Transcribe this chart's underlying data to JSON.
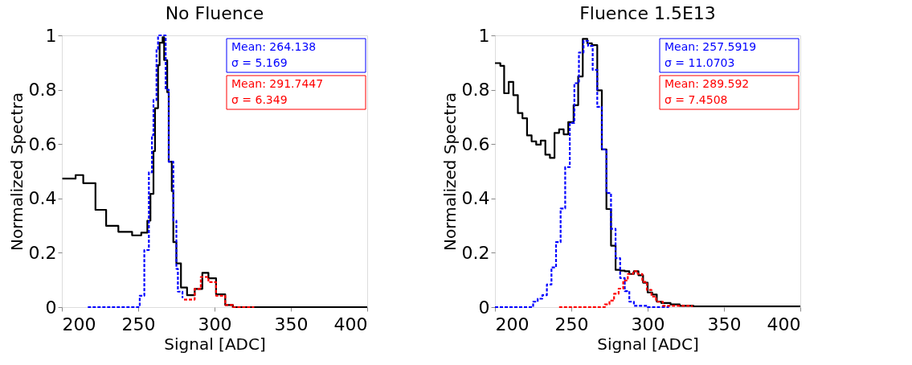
{
  "chart_data": [
    {
      "type": "step",
      "title": "No Fluence",
      "xlabel": "Signal [ADC]",
      "ylabel": "Normalized Spectra",
      "xlim": [
        200,
        400
      ],
      "xticks": [
        200,
        250,
        300,
        350,
        400
      ],
      "ylim": [
        0,
        1
      ],
      "yticks": [
        0,
        0.2,
        0.4,
        0.6,
        0.8,
        1
      ],
      "grid": false,
      "series": [
        {
          "color": "#000000",
          "line_style": "solid",
          "x": [
            200.3,
            209,
            214,
            222,
            229,
            237,
            246,
            252,
            256,
            258,
            260,
            261,
            263,
            264,
            266,
            267,
            269,
            270,
            272,
            273,
            275,
            278,
            282,
            287,
            292,
            296,
            301,
            307,
            312,
            350,
            400
          ],
          "values": [
            0.473,
            0.486,
            0.456,
            0.358,
            0.299,
            0.277,
            0.264,
            0.274,
            0.318,
            0.417,
            0.574,
            0.732,
            0.89,
            0.973,
            0.993,
            0.909,
            0.791,
            0.535,
            0.427,
            0.239,
            0.161,
            0.072,
            0.044,
            0.067,
            0.126,
            0.106,
            0.047,
            0.008,
            0,
            0,
            0
          ]
        },
        {
          "color": "#0000ff",
          "line_style": "dashed",
          "x": [
            217,
            246,
            251,
            254,
            257,
            259,
            260,
            262,
            263,
            266,
            268,
            270,
            273,
            275,
            276,
            279
          ],
          "values": [
            0,
            0,
            0.042,
            0.21,
            0.496,
            0.633,
            0.762,
            0.949,
            1,
            1,
            0.8,
            0.535,
            0.318,
            0.141,
            0.057,
            0.033
          ]
        },
        {
          "color": "#ff0000",
          "line_style": "dashed",
          "x": [
            280,
            287,
            291,
            296,
            301,
            307,
            312,
            326
          ],
          "values": [
            0.028,
            0.067,
            0.111,
            0.092,
            0.042,
            0.008,
            0,
            0
          ]
        }
      ],
      "annotations": [
        "Mean: 264.138",
        "σ = 5.169",
        "Mean: 291.7447",
        "σ = 6.349"
      ]
    },
    {
      "type": "step",
      "title": "Fluence 1.5E13",
      "xlabel": "Signal [ADC]",
      "ylabel": "Normalized Spectra",
      "xlim": [
        200,
        400
      ],
      "xticks": [
        200,
        250,
        300,
        350,
        400
      ],
      "ylim": [
        0,
        1
      ],
      "yticks": [
        0,
        0.2,
        0.4,
        0.6,
        0.8,
        1
      ],
      "grid": false,
      "series": [
        {
          "color": "#000000",
          "line_style": "solid",
          "x": [
            200,
            203.5,
            206,
            209,
            212,
            215,
            218,
            221,
            224,
            227,
            230,
            233,
            236,
            239,
            242,
            245,
            248,
            251.5,
            254.5,
            257.5,
            260.5,
            263.5,
            267,
            270,
            273,
            276,
            279,
            282,
            285,
            288,
            291,
            294,
            297,
            300,
            303,
            306,
            309,
            315,
            321,
            330,
            350,
            375,
            400
          ],
          "values": [
            0.898,
            0.888,
            0.787,
            0.829,
            0.78,
            0.714,
            0.695,
            0.632,
            0.61,
            0.598,
            0.613,
            0.561,
            0.549,
            0.641,
            0.654,
            0.636,
            0.681,
            0.743,
            0.849,
            0.987,
            0.971,
            0.964,
            0.798,
            0.58,
            0.361,
            0.226,
            0.137,
            0.134,
            0.132,
            0.122,
            0.132,
            0.117,
            0.09,
            0.054,
            0.046,
            0.02,
            0.015,
            0.01,
            0.005,
            0.003,
            0.003,
            0.003,
            0.003
          ]
        },
        {
          "color": "#0000ff",
          "line_style": "dashed",
          "x": [
            200,
            222,
            225,
            228,
            231,
            234,
            237,
            240,
            243,
            246,
            249,
            252,
            255,
            258,
            261,
            264,
            267,
            270,
            273,
            276,
            279,
            282,
            285,
            288,
            291,
            300,
            314
          ],
          "values": [
            0,
            0,
            0.02,
            0.031,
            0.044,
            0.083,
            0.146,
            0.239,
            0.363,
            0.515,
            0.678,
            0.824,
            0.937,
            0.98,
            0.961,
            0.873,
            0.737,
            0.58,
            0.42,
            0.288,
            0.18,
            0.107,
            0.059,
            0.02,
            0.005,
            0,
            0
          ]
        },
        {
          "color": "#ff0000",
          "line_style": "dashed",
          "x": [
            242,
            269,
            272,
            275,
            278,
            281,
            284,
            287,
            290.5,
            293.5,
            296.5,
            299.5,
            302.5,
            305.5,
            310,
            329
          ],
          "values": [
            0,
            0,
            0.01,
            0.024,
            0.049,
            0.068,
            0.098,
            0.122,
            0.132,
            0.122,
            0.093,
            0.063,
            0.039,
            0.02,
            0.005,
            0
          ]
        }
      ],
      "annotations": [
        "Mean: 257.5919",
        "σ = 11.0703",
        "Mean: 289.592",
        "σ = 7.4508"
      ]
    }
  ]
}
